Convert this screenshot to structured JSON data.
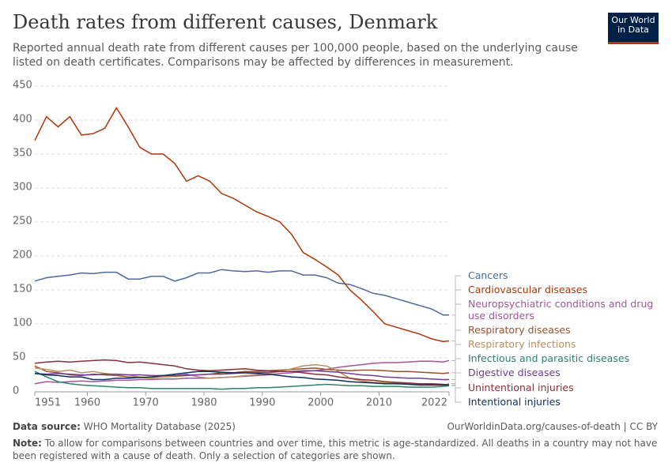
{
  "header": {
    "title": "Death rates from different causes, Denmark",
    "subtitle": "Reported annual death rate from different causes per 100,000 people, based on the underlying cause listed on death certificates. Comparisons may be affected by differences in measurement.",
    "logo": "Our World in Data"
  },
  "chart_data": {
    "type": "line",
    "x": [
      1951,
      1953,
      1955,
      1957,
      1959,
      1961,
      1963,
      1965,
      1967,
      1969,
      1971,
      1973,
      1975,
      1977,
      1979,
      1981,
      1983,
      1985,
      1987,
      1989,
      1991,
      1993,
      1995,
      1997,
      1999,
      2001,
      2003,
      2005,
      2007,
      2009,
      2011,
      2013,
      2015,
      2017,
      2019,
      2021,
      2022
    ],
    "xlim": [
      1951,
      2022
    ],
    "xticks": [
      1951,
      1960,
      1970,
      1980,
      1990,
      2000,
      2010,
      2022
    ],
    "ylim": [
      0,
      450
    ],
    "yticks": [
      0,
      50,
      100,
      150,
      200,
      250,
      300,
      350,
      400,
      450
    ],
    "grid": true,
    "series": [
      {
        "name": "Cancers",
        "color": "#4c6a9c",
        "values": [
          163,
          168,
          170,
          172,
          175,
          174,
          176,
          176,
          166,
          166,
          170,
          170,
          163,
          168,
          175,
          175,
          180,
          178,
          177,
          178,
          176,
          178,
          178,
          172,
          172,
          168,
          160,
          158,
          152,
          145,
          142,
          137,
          132,
          127,
          122,
          113,
          113
        ]
      },
      {
        "name": "Cardiovascular diseases",
        "color": "#b13507",
        "values": [
          370,
          405,
          390,
          405,
          378,
          380,
          388,
          418,
          390,
          360,
          350,
          350,
          336,
          310,
          318,
          310,
          292,
          285,
          275,
          265,
          258,
          250,
          232,
          205,
          195,
          184,
          172,
          150,
          135,
          118,
          100,
          95,
          90,
          85,
          78,
          74,
          75
        ]
      },
      {
        "name": "Neuropsychiatric conditions and drug use disorders",
        "color": "#a2559c",
        "values": [
          12,
          15,
          14,
          15,
          16,
          15,
          16,
          17,
          17,
          18,
          18,
          19,
          19,
          20,
          20,
          20,
          21,
          22,
          23,
          24,
          25,
          27,
          28,
          30,
          31,
          33,
          36,
          38,
          40,
          42,
          43,
          43,
          44,
          45,
          45,
          44,
          46
        ]
      },
      {
        "name": "Respiratory diseases",
        "color": "#9a5129",
        "values": [
          38,
          30,
          28,
          25,
          24,
          26,
          25,
          24,
          22,
          21,
          20,
          22,
          23,
          24,
          25,
          26,
          28,
          28,
          30,
          30,
          31,
          32,
          33,
          34,
          35,
          33,
          32,
          31,
          32,
          32,
          31,
          30,
          30,
          29,
          28,
          27,
          28
        ]
      },
      {
        "name": "Respiratory infections",
        "color": "#bc8e5a",
        "values": [
          35,
          33,
          30,
          32,
          28,
          30,
          27,
          25,
          25,
          22,
          20,
          22,
          24,
          26,
          22,
          20,
          21,
          22,
          24,
          25,
          27,
          30,
          34,
          38,
          40,
          38,
          30,
          20,
          16,
          14,
          13,
          13,
          12,
          12,
          11,
          10,
          12
        ]
      },
      {
        "name": "Infectious and parasitic diseases",
        "color": "#2c8465",
        "values": [
          30,
          22,
          15,
          12,
          10,
          9,
          8,
          7,
          6,
          6,
          5,
          5,
          5,
          5,
          5,
          5,
          4,
          5,
          5,
          6,
          6,
          7,
          8,
          9,
          10,
          11,
          10,
          9,
          9,
          8,
          8,
          8,
          7,
          7,
          7,
          8,
          9
        ]
      },
      {
        "name": "Digestive diseases",
        "color": "#6d3e91",
        "values": [
          27,
          26,
          27,
          26,
          25,
          25,
          26,
          26,
          25,
          25,
          24,
          24,
          24,
          25,
          25,
          26,
          26,
          27,
          28,
          28,
          29,
          30,
          30,
          31,
          31,
          30,
          29,
          27,
          25,
          24,
          22,
          21,
          20,
          20,
          19,
          18,
          18
        ]
      },
      {
        "name": "Unintentional injuries",
        "color": "#883039",
        "values": [
          42,
          44,
          45,
          44,
          45,
          46,
          47,
          46,
          43,
          44,
          42,
          40,
          38,
          34,
          32,
          31,
          32,
          33,
          34,
          32,
          31,
          30,
          30,
          28,
          26,
          25,
          22,
          20,
          18,
          17,
          15,
          14,
          13,
          12,
          12,
          11,
          10
        ]
      },
      {
        "name": "Intentional injuries",
        "color": "#0f2f5e",
        "values": [
          27,
          25,
          24,
          22,
          22,
          18,
          18,
          20,
          20,
          21,
          22,
          24,
          26,
          28,
          30,
          30,
          29,
          28,
          28,
          27,
          26,
          24,
          22,
          21,
          19,
          18,
          17,
          15,
          14,
          13,
          12,
          12,
          11,
          10,
          10,
          10,
          10
        ]
      }
    ]
  },
  "footer": {
    "source_label": "Data source:",
    "source": "WHO Mortality Database (2025)",
    "url": "OurWorldinData.org/causes-of-death | CC BY",
    "note_label": "Note:",
    "note": "To allow for comparisons between countries and over time, this metric is age-standardized. All deaths in a country may not have been registered with a cause of death. Only a selection of categories are shown."
  }
}
